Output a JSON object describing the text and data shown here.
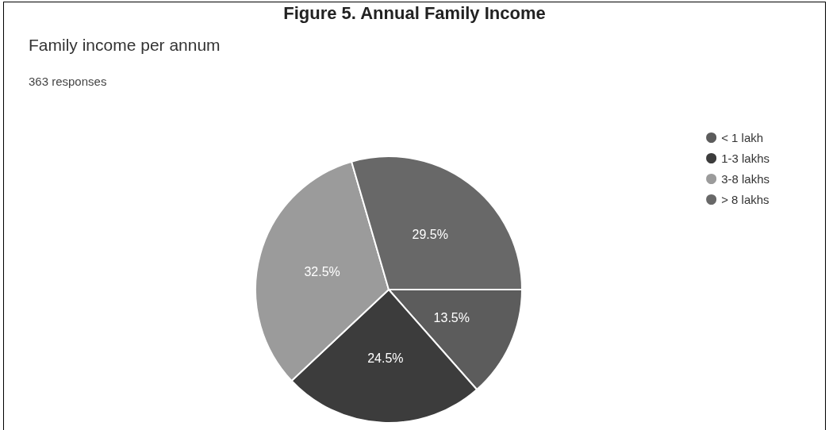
{
  "chart_data": {
    "type": "pie",
    "title": "Figure 5. Annual Family Income",
    "subtitle": "Family income per annum",
    "annotations": [
      "363 responses"
    ],
    "categories": [
      "< 1 lakh",
      "1-3 lakhs",
      "3-8 lakhs",
      "> 8 lakhs"
    ],
    "values": [
      13.5,
      24.5,
      32.5,
      29.5
    ],
    "value_labels": [
      "13.5%",
      "24.5%",
      "32.5%",
      "29.5%"
    ],
    "colors": [
      "#5c5c5c",
      "#3c3c3c",
      "#9b9b9b",
      "#686868"
    ],
    "legend": "right"
  }
}
